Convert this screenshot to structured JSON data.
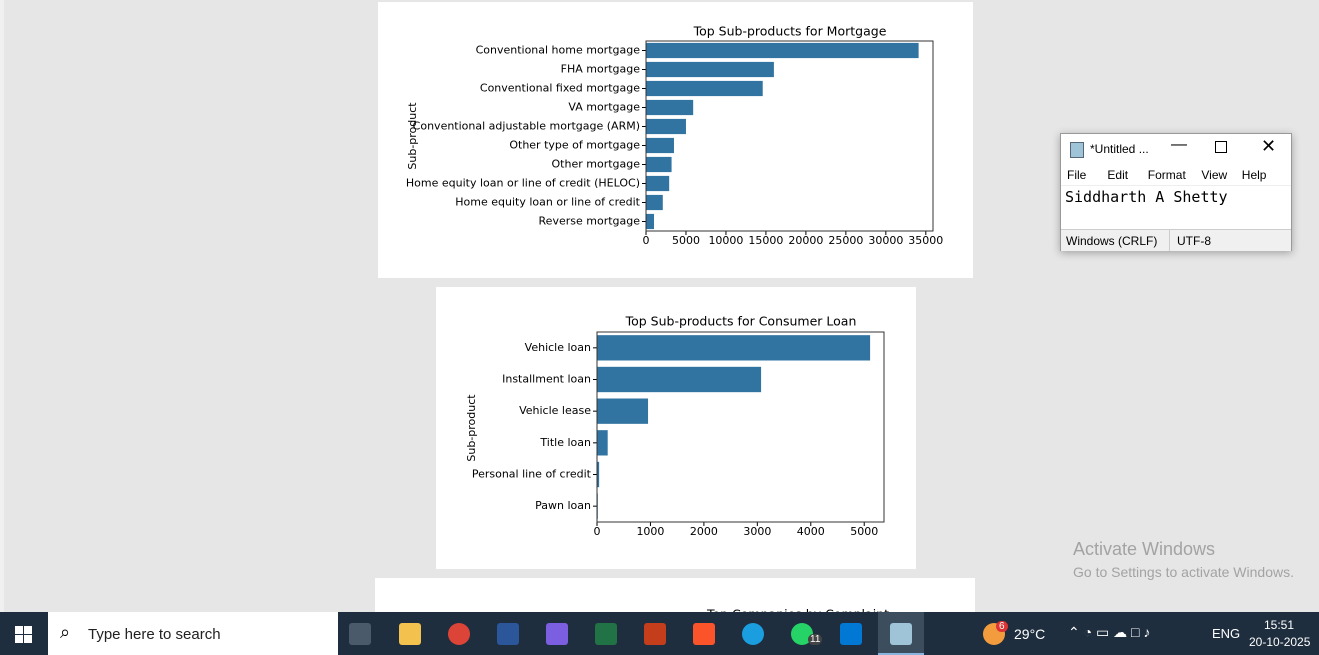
{
  "charts": [
    {
      "type": "bar",
      "title": "Top Sub-products for Mortgage",
      "ylabel": "Sub-product",
      "categories": [
        "Conventional home mortgage",
        "FHA mortgage",
        "Conventional fixed mortgage",
        "VA mortgage",
        "Conventional adjustable mortgage (ARM)",
        "Other type of mortgage",
        "Other mortgage",
        "Home equity loan or line of credit (HELOC)",
        "Home equity loan or line of credit",
        "Reverse mortgage"
      ],
      "values": [
        34100,
        16000,
        14600,
        5900,
        5000,
        3500,
        3200,
        2900,
        2100,
        1000
      ],
      "color": "#3274a1",
      "xlim": [
        0,
        35900
      ],
      "xticks": [
        0,
        5000,
        10000,
        15000,
        20000,
        25000,
        30000,
        35000
      ]
    },
    {
      "type": "bar",
      "title": "Top Sub-products for Consumer Loan",
      "ylabel": "Sub-product",
      "categories": [
        "Vehicle loan",
        "Installment loan",
        "Vehicle lease",
        "Title loan",
        "Personal line of credit",
        "Pawn loan"
      ],
      "values": [
        5110,
        3070,
        955,
        200,
        40,
        15
      ],
      "color": "#3274a1",
      "xlim": [
        0,
        5370
      ],
      "xticks": [
        0,
        1000,
        2000,
        3000,
        4000,
        5000
      ]
    },
    {
      "title": "Top Companies by Complaint"
    }
  ],
  "notepad": {
    "title": "*Untitled ...",
    "menu": [
      "File",
      "Edit",
      "Format",
      "View",
      "Help"
    ],
    "content": "Siddharth A Shetty",
    "status": [
      "Windows (CRLF)",
      "UTF-8"
    ]
  },
  "watermark": {
    "title": "Activate Windows",
    "text": "Go to Settings to activate Windows."
  },
  "taskbar": {
    "search": "Type here to search",
    "whatsapp_badge": 11,
    "weather_badge": 6,
    "temperature": "29°C",
    "language": "ENG",
    "time": "15:51",
    "date": "20-10-2025"
  }
}
